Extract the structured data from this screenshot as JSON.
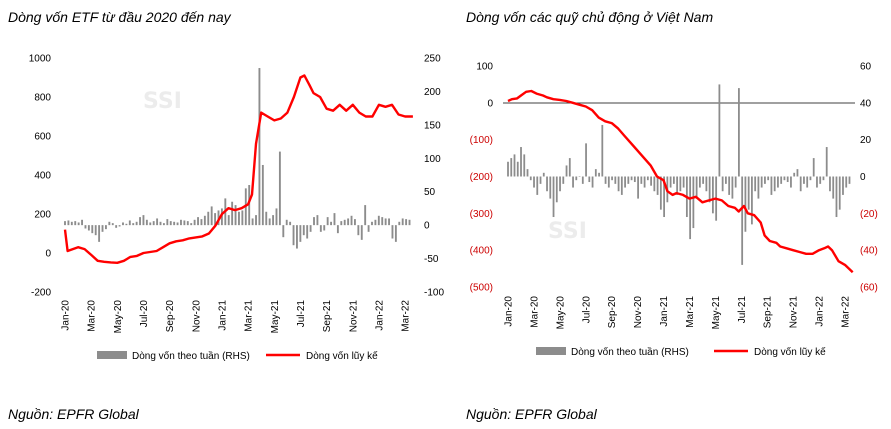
{
  "colors": {
    "line": "#ff0000",
    "bar": "#8c8c8c",
    "neg_tick": "#cc0000",
    "watermark": "#ececec"
  },
  "watermark": "SSI",
  "chart_data": [
    {
      "type": "bar+line",
      "title": "Dòng vốn ETF từ đầu 2020 đến nay",
      "source": "Nguồn: EPFR Global",
      "ylabel_left_ticks": [
        "1000",
        "800",
        "600",
        "400",
        "200",
        "0",
        "-200"
      ],
      "ylim_left": [
        -200,
        1000
      ],
      "ylabel_right_ticks": [
        "250",
        "200",
        "150",
        "100",
        "50",
        "0",
        "-50",
        "-100"
      ],
      "ylim_right": [
        -100,
        250
      ],
      "x_ticks": [
        "Jan-20",
        "Mar-20",
        "May-20",
        "Jul-20",
        "Sep-20",
        "Nov-20",
        "Jan-21",
        "Mar-21",
        "May-21",
        "Jul-21",
        "Sep-21",
        "Nov-21",
        "Jan-22",
        "Mar-22"
      ],
      "legend": {
        "bar": "Dòng vốn theo tuần (RHS)",
        "line": "Dòng vốn lũy kế"
      },
      "series_line": {
        "name": "Dòng vốn lũy kế",
        "points": [
          [
            0,
            120
          ],
          [
            0.2,
            10
          ],
          [
            0.6,
            20
          ],
          [
            1,
            30
          ],
          [
            1.5,
            20
          ],
          [
            2,
            -10
          ],
          [
            2.5,
            -40
          ],
          [
            3,
            -45
          ],
          [
            3.5,
            -48
          ],
          [
            4,
            -50
          ],
          [
            4.5,
            -40
          ],
          [
            5,
            -20
          ],
          [
            5.5,
            -15
          ],
          [
            6,
            0
          ],
          [
            7,
            10
          ],
          [
            7.5,
            30
          ],
          [
            8,
            50
          ],
          [
            8.5,
            60
          ],
          [
            9,
            65
          ],
          [
            9.5,
            75
          ],
          [
            10,
            80
          ],
          [
            10.5,
            85
          ],
          [
            11,
            100
          ],
          [
            11.5,
            140
          ],
          [
            12,
            200
          ],
          [
            12.5,
            230
          ],
          [
            13,
            220
          ],
          [
            13.5,
            230
          ],
          [
            14,
            250
          ],
          [
            14.3,
            300
          ],
          [
            14.6,
            560
          ],
          [
            15,
            720
          ],
          [
            15.5,
            700
          ],
          [
            16,
            680
          ],
          [
            16.5,
            690
          ],
          [
            17,
            720
          ],
          [
            17.5,
            800
          ],
          [
            18,
            900
          ],
          [
            18.3,
            910
          ],
          [
            18.7,
            860
          ],
          [
            19,
            820
          ],
          [
            19.5,
            800
          ],
          [
            20,
            740
          ],
          [
            20.5,
            730
          ],
          [
            21,
            760
          ],
          [
            21.5,
            730
          ],
          [
            22,
            760
          ],
          [
            22.5,
            720
          ],
          [
            23,
            700
          ],
          [
            23.5,
            700
          ],
          [
            24,
            760
          ],
          [
            24.5,
            750
          ],
          [
            25,
            760
          ],
          [
            25.5,
            710
          ],
          [
            26,
            700
          ],
          [
            26.6,
            700
          ]
        ]
      },
      "series_bar": {
        "name": "Dòng vốn theo tuần (RHS)",
        "values": [
          6,
          7,
          5,
          6,
          4,
          8,
          -5,
          -8,
          -12,
          -15,
          -25,
          -10,
          -6,
          5,
          3,
          -4,
          -2,
          4,
          2,
          7,
          3,
          5,
          12,
          15,
          8,
          4,
          6,
          10,
          5,
          3,
          9,
          6,
          5,
          4,
          8,
          7,
          6,
          3,
          8,
          12,
          9,
          14,
          20,
          28,
          18,
          22,
          25,
          40,
          15,
          35,
          30,
          20,
          22,
          55,
          60,
          10,
          15,
          235,
          90,
          20,
          10,
          15,
          25,
          110,
          -18,
          8,
          5,
          -30,
          -35,
          -25,
          -15,
          -20,
          -10,
          12,
          15,
          -10,
          -8,
          12,
          5,
          18,
          -12,
          6,
          8,
          10,
          14,
          9,
          -15,
          -22,
          30,
          -10,
          5,
          8,
          14,
          12,
          10,
          10,
          -20,
          -25,
          5,
          10,
          9,
          8
        ]
      }
    },
    {
      "type": "bar+line",
      "title": "Dòng vốn các quỹ chủ động ở Việt Nam",
      "source": "Nguồn: EPFR Global",
      "ylabel_left_ticks": [
        "100",
        "0",
        "(100)",
        "(200)",
        "(300)",
        "(400)",
        "(500)"
      ],
      "ylim_left": [
        -500,
        100
      ],
      "ylabel_right_ticks": [
        "60",
        "40",
        "20",
        "0",
        "(20)",
        "(40)",
        "(60)"
      ],
      "ylim_right": [
        -60,
        60
      ],
      "x_ticks": [
        "Jan-20",
        "Mar-20",
        "May-20",
        "Jul-20",
        "Sep-20",
        "Nov-20",
        "Jan-21",
        "Mar-21",
        "May-21",
        "Jul-21",
        "Sep-21",
        "Nov-21",
        "Jan-22",
        "Mar-22"
      ],
      "legend": {
        "bar": "Dòng vốn theo tuần (RHS)",
        "line": "Dòng vốn lũy kế"
      },
      "series_line": {
        "name": "Dòng vốn lũy kế",
        "points": [
          [
            0,
            5
          ],
          [
            0.3,
            10
          ],
          [
            0.7,
            12
          ],
          [
            1,
            20
          ],
          [
            1.4,
            30
          ],
          [
            1.8,
            32
          ],
          [
            2.2,
            25
          ],
          [
            2.7,
            20
          ],
          [
            3,
            15
          ],
          [
            3.5,
            10
          ],
          [
            4,
            8
          ],
          [
            4.5,
            5
          ],
          [
            5,
            0
          ],
          [
            5.5,
            -5
          ],
          [
            6,
            -10
          ],
          [
            6.5,
            -20
          ],
          [
            7,
            -40
          ],
          [
            7.5,
            -50
          ],
          [
            8,
            -55
          ],
          [
            8.5,
            -70
          ],
          [
            9,
            -90
          ],
          [
            9.5,
            -110
          ],
          [
            10,
            -130
          ],
          [
            10.5,
            -150
          ],
          [
            11,
            -170
          ],
          [
            11.5,
            -200
          ],
          [
            12,
            -210
          ],
          [
            12.3,
            -240
          ],
          [
            12.7,
            -250
          ],
          [
            13,
            -245
          ],
          [
            13.5,
            -250
          ],
          [
            14,
            -260
          ],
          [
            14.5,
            -255
          ],
          [
            15,
            -270
          ],
          [
            15.5,
            -265
          ],
          [
            16,
            -260
          ],
          [
            16.5,
            -265
          ],
          [
            17,
            -280
          ],
          [
            17.5,
            -285
          ],
          [
            17.8,
            -295
          ],
          [
            18.2,
            -280
          ],
          [
            18.5,
            -300
          ],
          [
            19,
            -305
          ],
          [
            19.5,
            -325
          ],
          [
            19.8,
            -360
          ],
          [
            20.2,
            -375
          ],
          [
            20.7,
            -380
          ],
          [
            21,
            -390
          ],
          [
            21.5,
            -395
          ],
          [
            22,
            -400
          ],
          [
            22.5,
            -405
          ],
          [
            23,
            -410
          ],
          [
            23.5,
            -410
          ],
          [
            24,
            -400
          ],
          [
            24.4,
            -395
          ],
          [
            24.7,
            -390
          ],
          [
            25,
            -400
          ],
          [
            25.5,
            -430
          ],
          [
            26,
            -440
          ],
          [
            26.6,
            -460
          ]
        ]
      },
      "series_bar": {
        "name": "Dòng vốn theo tuần (RHS)",
        "values": [
          8,
          10,
          12,
          8,
          16,
          12,
          4,
          -2,
          -6,
          -10,
          -4,
          2,
          -8,
          -12,
          -22,
          -14,
          -8,
          -4,
          6,
          10,
          -6,
          -2,
          0,
          -4,
          18,
          -3,
          -6,
          4,
          2,
          28,
          -4,
          -6,
          -2,
          -4,
          -8,
          -10,
          -6,
          -4,
          -2,
          -3,
          -12,
          -4,
          -6,
          -2,
          -5,
          -8,
          -10,
          -18,
          -22,
          -14,
          -6,
          -4,
          -10,
          -8,
          -6,
          -22,
          -34,
          -28,
          -12,
          -6,
          -4,
          -8,
          -14,
          -20,
          -24,
          50,
          -8,
          -4,
          -10,
          -12,
          -6,
          48,
          -48,
          -30,
          -18,
          -26,
          -8,
          -12,
          -6,
          -4,
          -2,
          -10,
          -8,
          -6,
          -4,
          -2,
          -3,
          -6,
          2,
          4,
          -8,
          -4,
          -6,
          -2,
          10,
          -6,
          -4,
          -2,
          16,
          -8,
          -12,
          -22,
          -18,
          -10,
          -6,
          -4
        ]
      }
    }
  ]
}
